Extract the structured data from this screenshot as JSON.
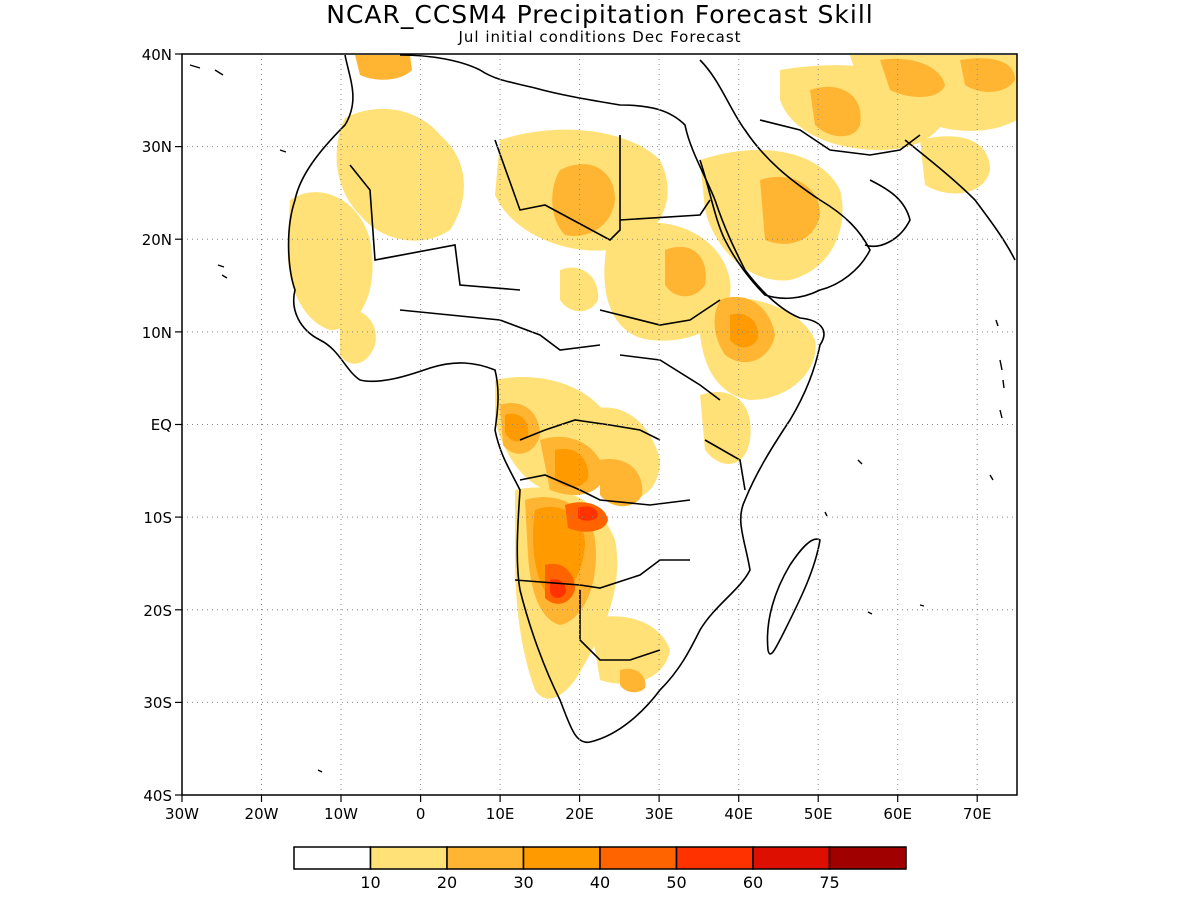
{
  "header": {
    "title": "NCAR_CCSM4 Precipitation Forecast Skill",
    "subtitle": "Jul initial conditions   Dec Forecast"
  },
  "map": {
    "lat_labels": [
      "40N",
      "30N",
      "20N",
      "10N",
      "EQ",
      "10S",
      "20S",
      "30S",
      "40S"
    ],
    "lon_labels": [
      "30W",
      "20W",
      "10W",
      "0",
      "10E",
      "20E",
      "30E",
      "40E",
      "50E",
      "60E",
      "70E"
    ],
    "lat_range": [
      -40,
      40
    ],
    "lon_range": [
      -30,
      75
    ],
    "grid": "dotted"
  },
  "legend": {
    "labels": [
      "10",
      "20",
      "30",
      "40",
      "50",
      "60",
      "75"
    ],
    "colors": [
      "#ffffff",
      "#ffe178",
      "#ffb432",
      "#ff9a00",
      "#ff6400",
      "#ff3200",
      "#dc0f00",
      "#a00000"
    ]
  },
  "colors": {
    "shade1": "#ffe178",
    "shade2": "#ffb432",
    "shade3": "#ff9a00",
    "shade4": "#ff6400",
    "shade5": "#ff3200",
    "shade6": "#dc0f00",
    "shade7": "#a00000"
  }
}
